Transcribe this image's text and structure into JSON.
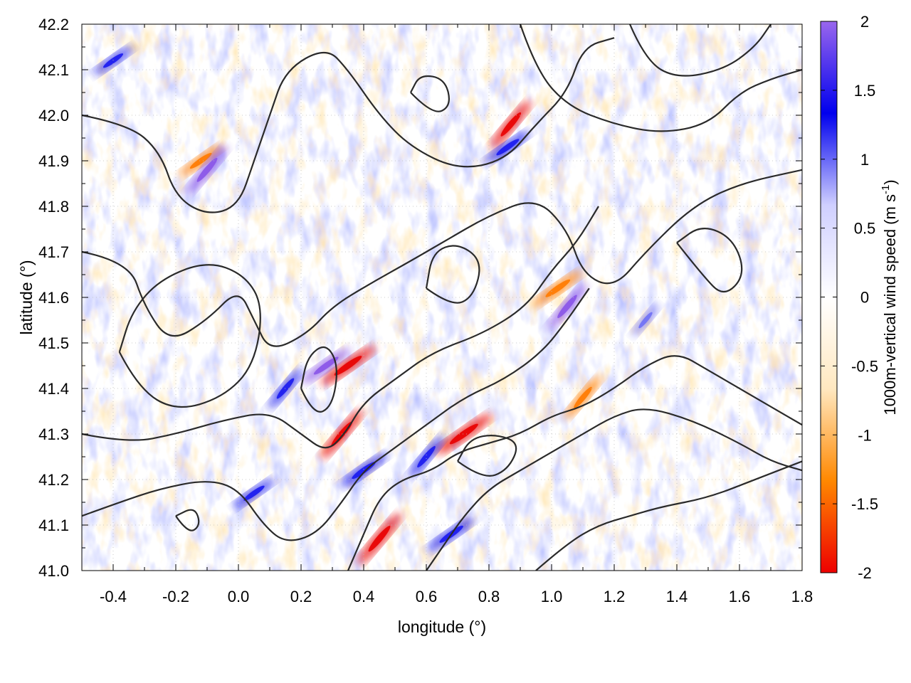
{
  "chart_data": {
    "type": "heatmap",
    "title": "",
    "xlabel": "longitude (°)",
    "ylabel": "latitude (°)",
    "xlim": [
      -0.5,
      1.8
    ],
    "ylim": [
      41.0,
      42.2
    ],
    "x_ticks": [
      "-0.4",
      "-0.2",
      "0.0",
      "0.2",
      "0.4",
      "0.6",
      "0.8",
      "1.0",
      "1.2",
      "1.4",
      "1.6",
      "1.8"
    ],
    "y_ticks": [
      "41.0",
      "41.1",
      "41.2",
      "41.3",
      "41.4",
      "41.5",
      "41.6",
      "41.7",
      "41.8",
      "41.9",
      "42.0",
      "42.1",
      "42.2"
    ],
    "colorbar": {
      "label": "1000m-vertical wind speed (m s",
      "label_superscript": "-1",
      "label_suffix": ")",
      "range": [
        -2,
        2
      ],
      "ticks": [
        "2",
        "1.5",
        "1",
        "0.5",
        "0",
        "-0.5",
        "-1",
        "-1.5",
        "-2"
      ],
      "colors": [
        "#ee0000",
        "#ff8800",
        "#ffe8c0",
        "#ffffff",
        "#cfcfff",
        "#0000ee",
        "#9966ee"
      ]
    },
    "grid": true,
    "contour_color": "#2a2a2a",
    "features": [
      {
        "lon": 0.35,
        "lat": 41.45,
        "w": -1.8
      },
      {
        "lon": 0.33,
        "lat": 41.3,
        "w": -1.7
      },
      {
        "lon": 0.72,
        "lat": 41.3,
        "w": -1.9
      },
      {
        "lon": 0.45,
        "lat": 41.07,
        "w": -1.8
      },
      {
        "lon": 1.02,
        "lat": 41.62,
        "w": -1.5
      },
      {
        "lon": 0.87,
        "lat": 41.98,
        "w": -1.6
      },
      {
        "lon": -0.12,
        "lat": 41.9,
        "w": -1.2
      },
      {
        "lon": 1.1,
        "lat": 41.38,
        "w": -1.3
      },
      {
        "lon": 0.28,
        "lat": 41.45,
        "w": 1.5
      },
      {
        "lon": 0.15,
        "lat": 41.4,
        "w": 1.2
      },
      {
        "lon": 0.4,
        "lat": 41.22,
        "w": 1.4
      },
      {
        "lon": 0.6,
        "lat": 41.25,
        "w": 1.3
      },
      {
        "lon": 0.68,
        "lat": 41.08,
        "w": 1.4
      },
      {
        "lon": 1.05,
        "lat": 41.58,
        "w": 1.5
      },
      {
        "lon": 0.86,
        "lat": 41.93,
        "w": 1.3
      },
      {
        "lon": -0.1,
        "lat": 41.88,
        "w": 1.6
      },
      {
        "lon": -0.4,
        "lat": 42.12,
        "w": 1.0
      },
      {
        "lon": 1.3,
        "lat": 41.55,
        "w": 0.7
      },
      {
        "lon": 0.05,
        "lat": 41.17,
        "w": 1.1
      }
    ],
    "contours": [
      [
        [
          -0.5,
          42.0
        ],
        [
          -0.35,
          41.98
        ],
        [
          -0.25,
          41.92
        ],
        [
          -0.2,
          41.82
        ],
        [
          -0.1,
          41.78
        ],
        [
          0.0,
          41.8
        ],
        [
          0.05,
          41.9
        ],
        [
          0.1,
          42.0
        ],
        [
          0.15,
          42.1
        ],
        [
          0.28,
          42.15
        ],
        [
          0.35,
          42.1
        ],
        [
          0.45,
          42.0
        ],
        [
          0.55,
          41.93
        ],
        [
          0.7,
          41.88
        ],
        [
          0.85,
          41.9
        ],
        [
          0.95,
          41.98
        ],
        [
          1.05,
          42.05
        ],
        [
          1.1,
          42.15
        ],
        [
          1.2,
          42.17
        ]
      ],
      [
        [
          -0.5,
          41.7
        ],
        [
          -0.35,
          41.68
        ],
        [
          -0.3,
          41.58
        ],
        [
          -0.22,
          41.5
        ],
        [
          -0.1,
          41.55
        ],
        [
          0.0,
          41.62
        ],
        [
          0.05,
          41.55
        ],
        [
          0.1,
          41.48
        ],
        [
          0.22,
          41.52
        ],
        [
          0.3,
          41.58
        ],
        [
          0.42,
          41.63
        ],
        [
          0.55,
          41.68
        ],
        [
          0.65,
          41.72
        ],
        [
          0.8,
          41.78
        ],
        [
          0.95,
          41.82
        ],
        [
          1.05,
          41.75
        ],
        [
          1.1,
          41.65
        ],
        [
          1.2,
          41.62
        ],
        [
          1.3,
          41.7
        ],
        [
          1.45,
          41.8
        ],
        [
          1.6,
          41.85
        ],
        [
          1.8,
          41.88
        ]
      ],
      [
        [
          -0.38,
          41.48
        ],
        [
          -0.32,
          41.4
        ],
        [
          -0.2,
          41.35
        ],
        [
          -0.05,
          41.38
        ],
        [
          0.05,
          41.45
        ],
        [
          0.08,
          41.58
        ],
        [
          0.02,
          41.65
        ],
        [
          -0.1,
          41.68
        ],
        [
          -0.25,
          41.64
        ],
        [
          -0.34,
          41.57
        ],
        [
          -0.38,
          41.48
        ]
      ],
      [
        [
          -0.5,
          41.3
        ],
        [
          -0.35,
          41.28
        ],
        [
          -0.2,
          41.3
        ],
        [
          -0.05,
          41.33
        ],
        [
          0.1,
          41.35
        ],
        [
          0.2,
          41.3
        ],
        [
          0.28,
          41.26
        ],
        [
          0.34,
          41.3
        ],
        [
          0.4,
          41.37
        ],
        [
          0.5,
          41.42
        ],
        [
          0.62,
          41.48
        ],
        [
          0.78,
          41.52
        ],
        [
          0.92,
          41.58
        ],
        [
          1.0,
          41.66
        ],
        [
          1.08,
          41.72
        ],
        [
          1.15,
          41.8
        ]
      ],
      [
        [
          -0.5,
          41.12
        ],
        [
          -0.38,
          41.15
        ],
        [
          -0.25,
          41.18
        ],
        [
          -0.1,
          41.2
        ],
        [
          0.0,
          41.18
        ],
        [
          0.08,
          41.1
        ],
        [
          0.15,
          41.06
        ],
        [
          0.25,
          41.08
        ],
        [
          0.33,
          41.15
        ],
        [
          0.4,
          41.22
        ],
        [
          0.48,
          41.26
        ],
        [
          0.6,
          41.32
        ],
        [
          0.72,
          41.38
        ],
        [
          0.85,
          41.42
        ],
        [
          0.97,
          41.48
        ],
        [
          1.05,
          41.55
        ],
        [
          1.12,
          41.62
        ]
      ],
      [
        [
          0.35,
          41.0
        ],
        [
          0.4,
          41.08
        ],
        [
          0.45,
          41.16
        ],
        [
          0.52,
          41.2
        ],
        [
          0.62,
          41.22
        ],
        [
          0.7,
          41.26
        ],
        [
          0.8,
          41.28
        ],
        [
          0.9,
          41.3
        ],
        [
          1.0,
          41.34
        ],
        [
          1.1,
          41.36
        ],
        [
          1.2,
          41.4
        ],
        [
          1.3,
          41.45
        ],
        [
          1.4,
          41.48
        ],
        [
          1.5,
          41.44
        ],
        [
          1.6,
          41.4
        ],
        [
          1.7,
          41.36
        ],
        [
          1.8,
          41.32
        ]
      ],
      [
        [
          0.6,
          41.0
        ],
        [
          0.66,
          41.06
        ],
        [
          0.72,
          41.12
        ],
        [
          0.8,
          41.18
        ],
        [
          0.9,
          41.22
        ],
        [
          1.0,
          41.26
        ],
        [
          1.1,
          41.3
        ],
        [
          1.2,
          41.34
        ],
        [
          1.3,
          41.36
        ],
        [
          1.45,
          41.33
        ],
        [
          1.6,
          41.28
        ],
        [
          1.7,
          41.24
        ],
        [
          1.8,
          41.22
        ]
      ],
      [
        [
          0.95,
          41.0
        ],
        [
          1.05,
          41.06
        ],
        [
          1.15,
          41.1
        ],
        [
          1.25,
          41.12
        ],
        [
          1.35,
          41.14
        ],
        [
          1.5,
          41.16
        ],
        [
          1.65,
          41.2
        ],
        [
          1.8,
          41.24
        ]
      ],
      [
        [
          0.9,
          42.2
        ],
        [
          0.95,
          42.1
        ],
        [
          1.05,
          42.02
        ],
        [
          1.2,
          41.98
        ],
        [
          1.35,
          41.96
        ],
        [
          1.5,
          41.98
        ],
        [
          1.6,
          42.05
        ],
        [
          1.7,
          42.08
        ],
        [
          1.8,
          42.1
        ]
      ],
      [
        [
          1.4,
          41.72
        ],
        [
          1.48,
          41.65
        ],
        [
          1.55,
          41.6
        ],
        [
          1.62,
          41.65
        ],
        [
          1.58,
          41.73
        ],
        [
          1.48,
          41.76
        ],
        [
          1.4,
          41.72
        ]
      ],
      [
        [
          0.2,
          41.4
        ],
        [
          0.24,
          41.34
        ],
        [
          0.3,
          41.36
        ],
        [
          0.32,
          41.45
        ],
        [
          0.28,
          41.5
        ],
        [
          0.22,
          41.47
        ],
        [
          0.2,
          41.4
        ]
      ],
      [
        [
          -0.2,
          41.12
        ],
        [
          -0.16,
          41.08
        ],
        [
          -0.12,
          41.1
        ],
        [
          -0.14,
          41.14
        ],
        [
          -0.2,
          41.12
        ]
      ],
      [
        [
          0.7,
          41.24
        ],
        [
          0.78,
          41.2
        ],
        [
          0.86,
          41.22
        ],
        [
          0.9,
          41.28
        ],
        [
          0.82,
          41.3
        ],
        [
          0.74,
          41.29
        ],
        [
          0.7,
          41.24
        ]
      ],
      [
        [
          0.55,
          42.05
        ],
        [
          0.62,
          42.0
        ],
        [
          0.68,
          42.02
        ],
        [
          0.66,
          42.08
        ],
        [
          0.58,
          42.09
        ],
        [
          0.55,
          42.05
        ]
      ],
      [
        [
          1.25,
          42.2
        ],
        [
          1.3,
          42.12
        ],
        [
          1.4,
          42.08
        ],
        [
          1.55,
          42.1
        ],
        [
          1.65,
          42.15
        ],
        [
          1.7,
          42.2
        ]
      ],
      [
        [
          0.6,
          41.62
        ],
        [
          0.68,
          41.58
        ],
        [
          0.75,
          41.6
        ],
        [
          0.78,
          41.68
        ],
        [
          0.7,
          41.72
        ],
        [
          0.62,
          41.7
        ],
        [
          0.6,
          41.62
        ]
      ]
    ]
  }
}
